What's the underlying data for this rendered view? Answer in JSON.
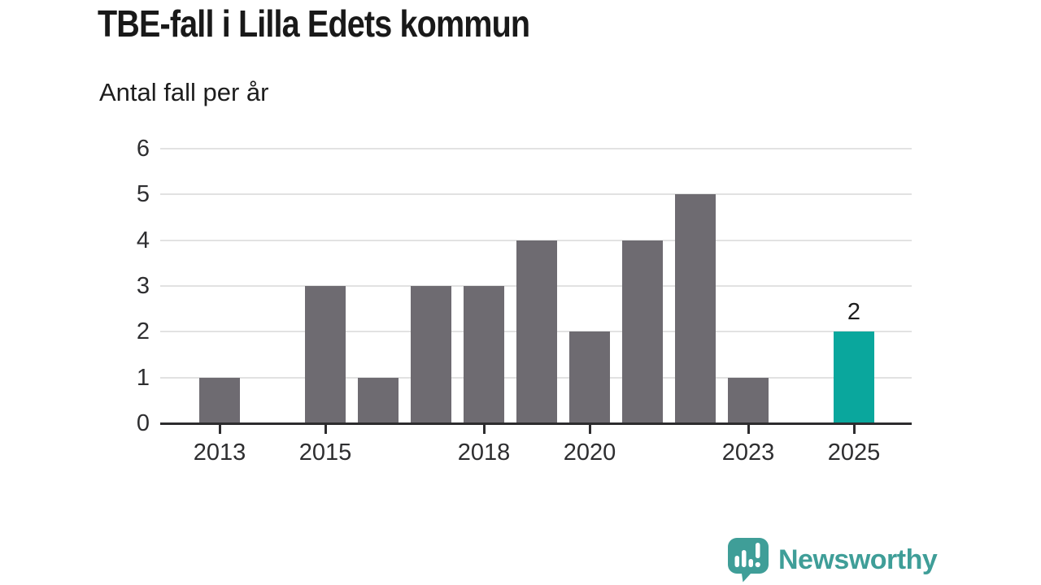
{
  "chart_data": {
    "type": "bar",
    "title": "TBE-fall i Lilla Edets kommun",
    "subtitle": "Antal fall per år",
    "xlabel": "",
    "ylabel": "Antal fall per år",
    "categories": [
      "2013",
      "2014",
      "2015",
      "2016",
      "2017",
      "2018",
      "2019",
      "2020",
      "2021",
      "2022",
      "2023",
      "2024",
      "2025"
    ],
    "values": [
      1,
      0,
      3,
      1,
      3,
      3,
      4,
      2,
      4,
      5,
      1,
      0,
      2
    ],
    "highlight_index": 12,
    "data_labels": [
      {
        "index": 12,
        "text": "2"
      }
    ],
    "x_tick_labels": [
      "2013",
      "2015",
      "2018",
      "2020",
      "2023",
      "2025"
    ],
    "y_ticks": [
      "0",
      "1",
      "2",
      "3",
      "4",
      "5",
      "6"
    ],
    "ylim": [
      0,
      6
    ],
    "grid": "horizontal",
    "legend": "none",
    "colors": {
      "bar": "#6e6b71",
      "highlight": "#0aa79d",
      "grid": "#e2e2e2",
      "axis": "#2d2c2e",
      "tick_text": "#2e2e30",
      "text": "#1d1d1d"
    }
  },
  "footer": {
    "brand": "Newsworthy",
    "logo_icon": "speech-bubble-bar-chart",
    "brand_color": "#3f9e98",
    "logo_bar_color": "#ffffff"
  }
}
